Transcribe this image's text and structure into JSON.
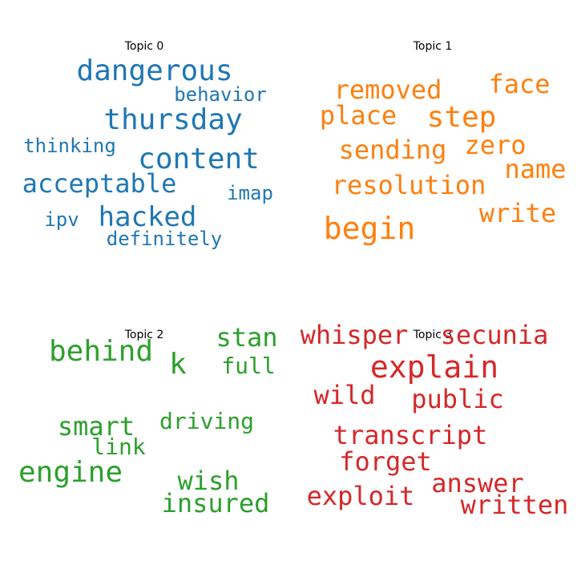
{
  "chart_data": [
    {
      "type": "wordcloud",
      "title": "Topic 0",
      "color": "#1f77b4",
      "words": [
        "dangerous",
        "behavior",
        "thursday",
        "thinking",
        "content",
        "acceptable",
        "imap",
        "ipv",
        "hacked",
        "definitely"
      ]
    },
    {
      "type": "wordcloud",
      "title": "Topic 1",
      "color": "#ff7f0e",
      "words": [
        "removed",
        "face",
        "place",
        "step",
        "sending",
        "zero",
        "name",
        "resolution",
        "begin",
        "write"
      ]
    },
    {
      "type": "wordcloud",
      "title": "Topic 2",
      "color": "#2ca02c",
      "words": [
        "behind",
        "stan",
        "k",
        "full",
        "smart",
        "driving",
        "link",
        "engine",
        "wish",
        "insured"
      ]
    },
    {
      "type": "wordcloud",
      "title": "Topic 3",
      "color": "#d62728",
      "words": [
        "whisper",
        "secunia",
        "explain",
        "wild",
        "public",
        "transcript",
        "forget",
        "answer",
        "exploit",
        "written"
      ]
    }
  ]
}
